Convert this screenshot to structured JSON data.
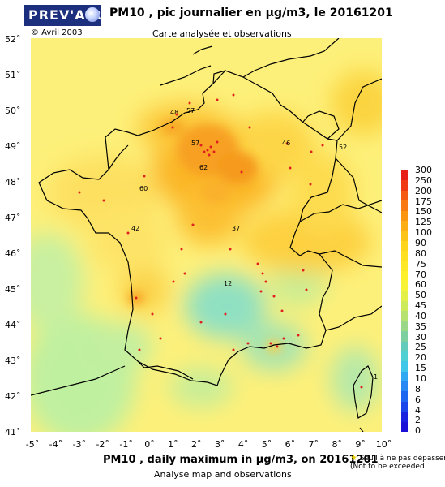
{
  "header": {
    "logo_text": "PREV'AIR",
    "title": "PM10 , pic journalier en µg/m3, le 20161201",
    "copyright": "© Avril 2003",
    "subtitle": "Carte analysée et observations"
  },
  "footer": {
    "title": "PM10 , daily maximum in µg/m3, on 20161201",
    "subtitle": "Analyse map and observations",
    "legend_note_line1": "Seuil à ne pas dépasser",
    "legend_note_line2": "(Not to be exceeded"
  },
  "axes": {
    "latitudes": [
      "52˚",
      "51˚",
      "50˚",
      "49˚",
      "48˚",
      "47˚",
      "46˚",
      "45˚",
      "44˚",
      "43˚",
      "42˚",
      "41˚"
    ],
    "longitudes": [
      "-5˚",
      "-4˚",
      "-3˚",
      "-2˚",
      "-1˚",
      "0˚",
      "1˚",
      "2˚",
      "3˚",
      "4˚",
      "5˚",
      "6˚",
      "7˚",
      "8˚",
      "9˚",
      "10˚"
    ]
  },
  "colorbar": {
    "labels": [
      "300",
      "250",
      "200",
      "175",
      "150",
      "125",
      "100",
      "90",
      "80",
      "75",
      "70",
      "60",
      "50",
      "45",
      "40",
      "35",
      "30",
      "25",
      "20",
      "15",
      "10",
      "8",
      "6",
      "4",
      "2",
      "0"
    ],
    "colors": [
      "#e8201a",
      "#f03a14",
      "#f55a12",
      "#f97a12",
      "#fb9612",
      "#fcae14",
      "#fdc418",
      "#fed41c",
      "#fee020",
      "#ffe82a",
      "#fff02e",
      "#f6f338",
      "#e2f048",
      "#cdea5a",
      "#b5e270",
      "#9ad888",
      "#7dcfa0",
      "#64cabb",
      "#4fd0d3",
      "#3ec7e8",
      "#30a9f2",
      "#2788f3",
      "#1f66f0",
      "#1a46ea",
      "#1a22e0",
      "#1a10d8"
    ]
  },
  "map_values": [
    {
      "label": "57"
    },
    {
      "label": "48"
    },
    {
      "label": "57"
    },
    {
      "label": "46"
    },
    {
      "label": "52"
    },
    {
      "label": "62"
    },
    {
      "label": "60"
    },
    {
      "label": "42"
    },
    {
      "label": "37"
    },
    {
      "label": "12"
    },
    {
      "label": "1"
    }
  ]
}
